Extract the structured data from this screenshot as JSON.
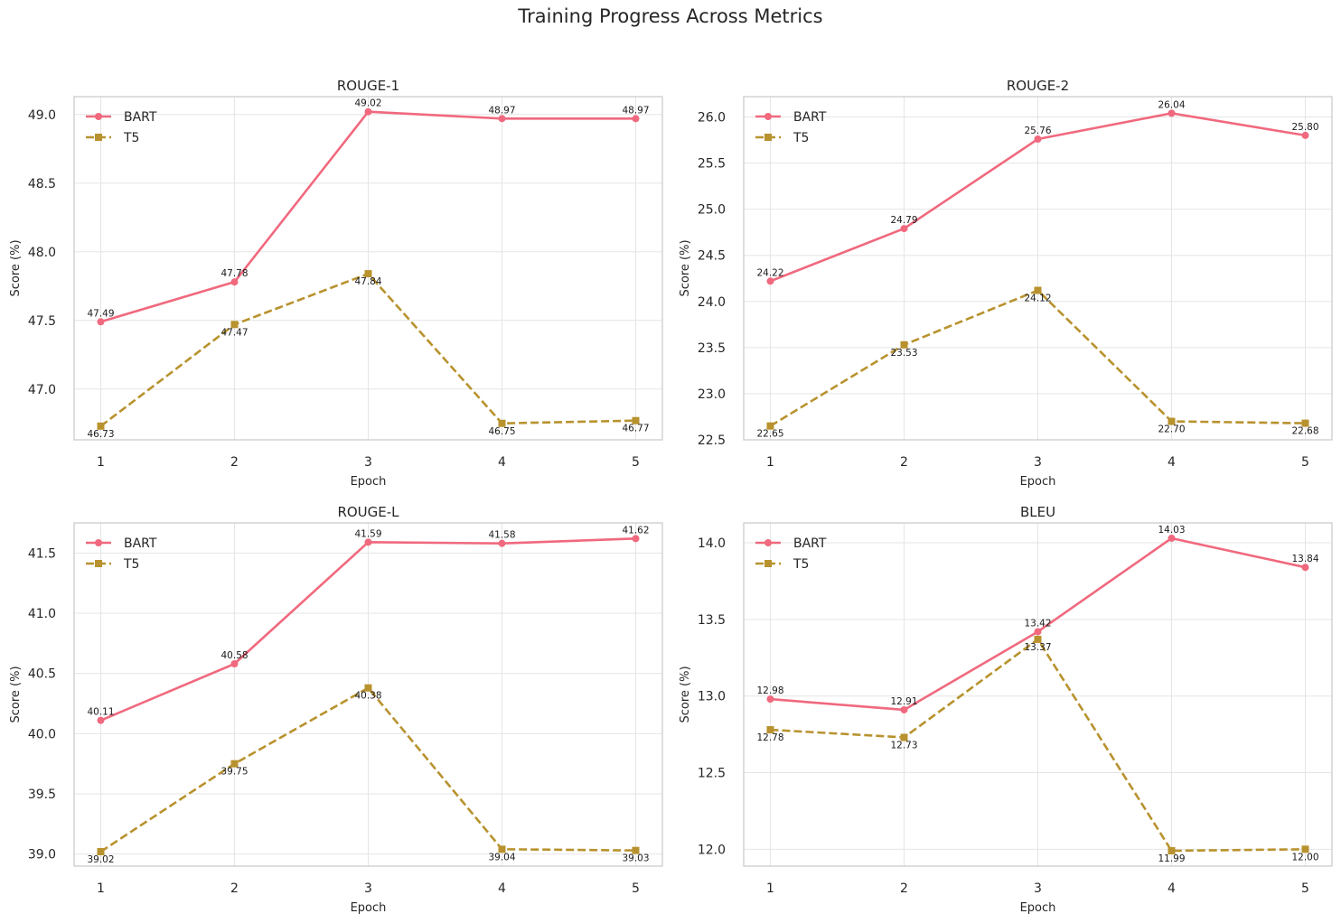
{
  "title": "Training Progress Across Metrics",
  "colors": {
    "BART": "#f0697e",
    "T5": "#b8922e",
    "grid": "#e5e5e5",
    "frame": "#cccccc"
  },
  "chart_data": [
    {
      "type": "line",
      "title": "ROUGE-1",
      "xlabel": "Epoch",
      "ylabel": "Score (%)",
      "x": [
        1,
        2,
        3,
        4,
        5
      ],
      "ylim": [
        46.63,
        49.13
      ],
      "yticks": [
        47.0,
        47.5,
        48.0,
        48.5,
        49.0
      ],
      "ytick_labels": [
        "47.0",
        "47.5",
        "48.0",
        "48.5",
        "49.0"
      ],
      "legend": "top-left",
      "grid": true,
      "series": [
        {
          "name": "BART",
          "values": [
            47.49,
            47.78,
            49.02,
            48.97,
            48.97
          ],
          "labels": [
            "47.49",
            "47.78",
            "49.02",
            "48.97",
            "48.97"
          ],
          "marker": "circle",
          "style": "solid"
        },
        {
          "name": "T5",
          "values": [
            46.73,
            47.47,
            47.84,
            46.75,
            46.77
          ],
          "labels": [
            "46.73",
            "47.47",
            "47.84",
            "46.75",
            "46.77"
          ],
          "marker": "square",
          "style": "dashed"
        }
      ]
    },
    {
      "type": "line",
      "title": "ROUGE-2",
      "xlabel": "Epoch",
      "ylabel": "Score (%)",
      "x": [
        1,
        2,
        3,
        4,
        5
      ],
      "ylim": [
        22.5,
        26.22
      ],
      "yticks": [
        22.5,
        23.0,
        23.5,
        24.0,
        24.5,
        25.0,
        25.5,
        26.0
      ],
      "ytick_labels": [
        "22.5",
        "23.0",
        "23.5",
        "24.0",
        "24.5",
        "25.0",
        "25.5",
        "26.0"
      ],
      "legend": "top-left",
      "grid": true,
      "series": [
        {
          "name": "BART",
          "values": [
            24.22,
            24.79,
            25.76,
            26.04,
            25.8
          ],
          "labels": [
            "24.22",
            "24.79",
            "25.76",
            "26.04",
            "25.80"
          ],
          "marker": "circle",
          "style": "solid"
        },
        {
          "name": "T5",
          "values": [
            22.65,
            23.53,
            24.12,
            22.7,
            22.68
          ],
          "labels": [
            "22.65",
            "23.53",
            "24.12",
            "22.70",
            "22.68"
          ],
          "marker": "square",
          "style": "dashed"
        }
      ]
    },
    {
      "type": "line",
      "title": "ROUGE-L",
      "xlabel": "Epoch",
      "ylabel": "Score (%)",
      "x": [
        1,
        2,
        3,
        4,
        5
      ],
      "ylim": [
        38.9,
        41.75
      ],
      "yticks": [
        39.0,
        39.5,
        40.0,
        40.5,
        41.0,
        41.5
      ],
      "ytick_labels": [
        "39.0",
        "39.5",
        "40.0",
        "40.5",
        "41.0",
        "41.5"
      ],
      "legend": "top-left",
      "grid": true,
      "series": [
        {
          "name": "BART",
          "values": [
            40.11,
            40.58,
            41.59,
            41.58,
            41.62
          ],
          "labels": [
            "40.11",
            "40.58",
            "41.59",
            "41.58",
            "41.62"
          ],
          "marker": "circle",
          "style": "solid"
        },
        {
          "name": "T5",
          "values": [
            39.02,
            39.75,
            40.38,
            39.04,
            39.03
          ],
          "labels": [
            "39.02",
            "39.75",
            "40.38",
            "39.04",
            "39.03"
          ],
          "marker": "square",
          "style": "dashed"
        }
      ]
    },
    {
      "type": "line",
      "title": "BLEU",
      "xlabel": "Epoch",
      "ylabel": "Score (%)",
      "x": [
        1,
        2,
        3,
        4,
        5
      ],
      "ylim": [
        11.89,
        14.13
      ],
      "yticks": [
        12.0,
        12.5,
        13.0,
        13.5,
        14.0
      ],
      "ytick_labels": [
        "12.0",
        "12.5",
        "13.0",
        "13.5",
        "14.0"
      ],
      "legend": "top-left",
      "grid": true,
      "series": [
        {
          "name": "BART",
          "values": [
            12.98,
            12.91,
            13.42,
            14.03,
            13.84
          ],
          "labels": [
            "12.98",
            "12.91",
            "13.42",
            "14.03",
            "13.84"
          ],
          "marker": "circle",
          "style": "solid"
        },
        {
          "name": "T5",
          "values": [
            12.78,
            12.73,
            13.37,
            11.99,
            12.0
          ],
          "labels": [
            "12.78",
            "12.73",
            "13.37",
            "11.99",
            "12.00"
          ],
          "marker": "square",
          "style": "dashed"
        }
      ]
    }
  ]
}
